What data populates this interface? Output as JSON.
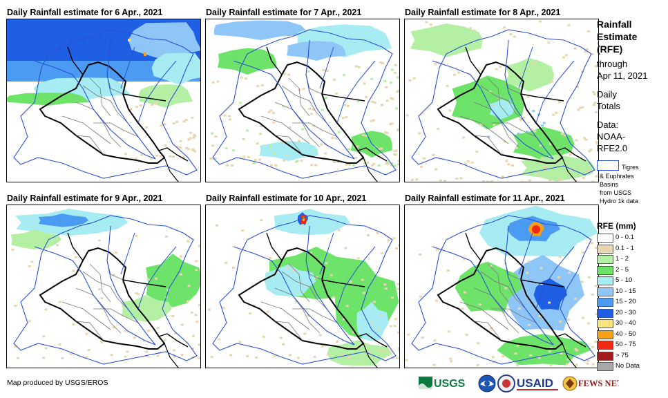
{
  "panels": [
    {
      "title": "Daily Rainfall estimate for 6 Apr., 2021"
    },
    {
      "title": "Daily Rainfall estimate for 7 Apr., 2021"
    },
    {
      "title": "Daily Rainfall estimate for 8 Apr., 2021"
    },
    {
      "title": "Daily Rainfall estimate for 9 Apr., 2021"
    },
    {
      "title": "Daily Rainfall estimate for 10 Apr., 2021"
    },
    {
      "title": "Daily Rainfall estimate for 11 Apr., 2021"
    }
  ],
  "sidebar": {
    "title_lines": [
      "Rainfall",
      "Estimate",
      "(RFE)"
    ],
    "through_lines": [
      "through",
      "Apr 11, 2021"
    ],
    "daily_lines": [
      "Daily",
      "Totals"
    ],
    "data_lines": [
      "Data:",
      "NOAA-",
      "RFE2.0"
    ],
    "basin_lines": [
      "Tigres",
      "& Euphrates",
      "Basins",
      "from USGS",
      "Hydro 1k data"
    ],
    "legend_title": "RFE (mm)",
    "legend": [
      {
        "label": "0 - 0.1",
        "color": "#ffffff"
      },
      {
        "label": "0.1 - 1",
        "color": "#e8d6b0"
      },
      {
        "label": "1 - 2",
        "color": "#b4f0a4"
      },
      {
        "label": "2 - 5",
        "color": "#6ee36a"
      },
      {
        "label": "5 - 10",
        "color": "#a6ecf2"
      },
      {
        "label": "10 - 15",
        "color": "#8ec6f7"
      },
      {
        "label": "15 - 20",
        "color": "#4b9bf2"
      },
      {
        "label": "20 - 30",
        "color": "#1f5fe4"
      },
      {
        "label": "30 - 40",
        "color": "#f8e27a"
      },
      {
        "label": "40 - 50",
        "color": "#f6a018"
      },
      {
        "label": "50 - 75",
        "color": "#ef2a14"
      },
      {
        "label": "> 75",
        "color": "#a31c1c"
      },
      {
        "label": "No Data",
        "color": "#a8a8a8"
      }
    ]
  },
  "footer": {
    "credit": "Map produced by USGS/EROS",
    "logos": [
      "USGS",
      "USAID",
      "FEWS NET"
    ]
  }
}
